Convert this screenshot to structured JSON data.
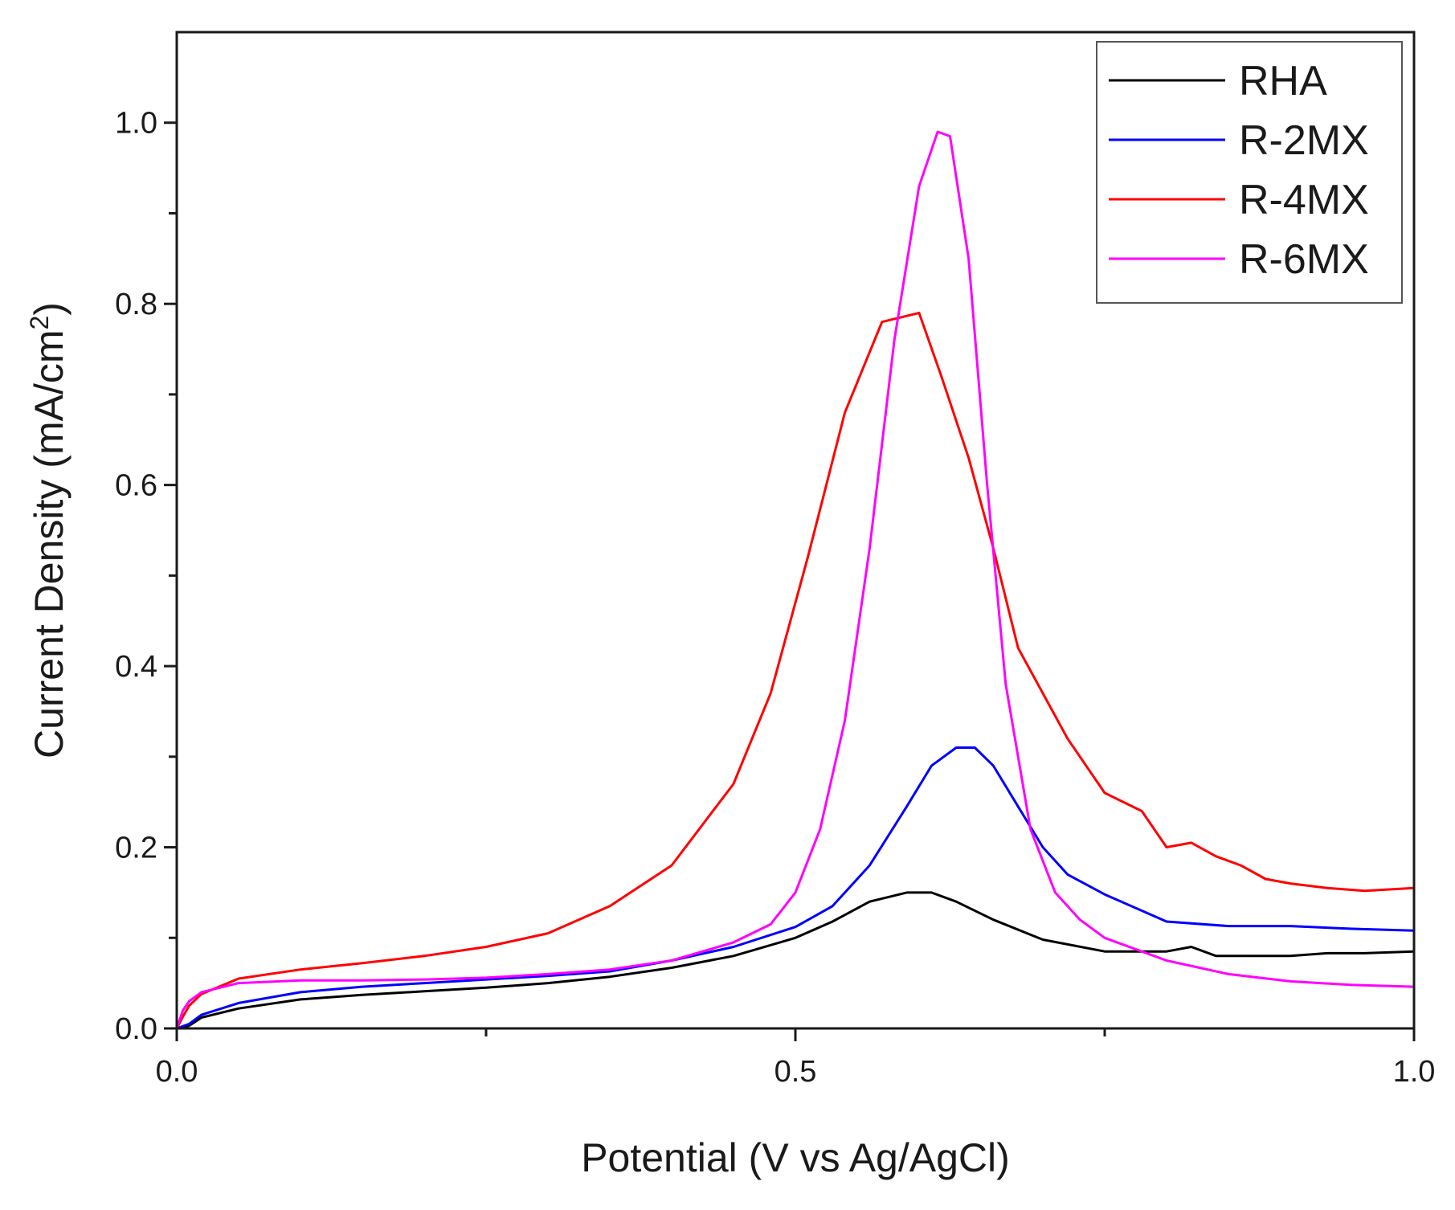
{
  "chart_data": {
    "type": "line",
    "title": "",
    "xlabel": "Potential (V vs Ag/AgCl)",
    "ylabel": "Current Density (mA/cm",
    "ylabel_sup": "2",
    "ylabel_end": ")",
    "xlim": [
      0.0,
      1.0
    ],
    "ylim": [
      0.0,
      1.1
    ],
    "x_ticks": [
      0.0,
      0.25,
      0.5,
      0.75,
      1.0
    ],
    "x_tick_labels": [
      "0.0",
      "",
      "0.5",
      "",
      "1.0"
    ],
    "y_ticks": [
      0.0,
      0.1,
      0.2,
      0.3,
      0.4,
      0.5,
      0.6,
      0.7,
      0.8,
      0.9,
      1.0
    ],
    "y_tick_labels": [
      "0.0",
      "",
      "0.2",
      "",
      "0.4",
      "",
      "0.6",
      "",
      "0.8",
      "",
      "1.0"
    ],
    "grid": false,
    "legend_position": "top-right",
    "series": [
      {
        "name": "RHA",
        "color": "#000000",
        "x": [
          0.0,
          0.01,
          0.02,
          0.05,
          0.1,
          0.15,
          0.2,
          0.25,
          0.3,
          0.35,
          0.4,
          0.45,
          0.5,
          0.53,
          0.56,
          0.59,
          0.61,
          0.63,
          0.66,
          0.7,
          0.75,
          0.8,
          0.82,
          0.84,
          0.87,
          0.9,
          0.93,
          0.96,
          1.0
        ],
        "values": [
          0.0,
          0.003,
          0.012,
          0.022,
          0.032,
          0.037,
          0.041,
          0.045,
          0.05,
          0.057,
          0.067,
          0.08,
          0.1,
          0.118,
          0.14,
          0.15,
          0.15,
          0.14,
          0.12,
          0.098,
          0.085,
          0.085,
          0.09,
          0.08,
          0.08,
          0.08,
          0.083,
          0.083,
          0.085
        ]
      },
      {
        "name": "R-2MX",
        "color": "#0000ff",
        "x": [
          0.0,
          0.01,
          0.02,
          0.05,
          0.1,
          0.15,
          0.2,
          0.25,
          0.3,
          0.35,
          0.4,
          0.45,
          0.5,
          0.53,
          0.56,
          0.59,
          0.61,
          0.63,
          0.645,
          0.66,
          0.68,
          0.7,
          0.72,
          0.75,
          0.8,
          0.85,
          0.9,
          0.95,
          1.0
        ],
        "values": [
          0.0,
          0.005,
          0.015,
          0.028,
          0.04,
          0.046,
          0.05,
          0.054,
          0.058,
          0.063,
          0.075,
          0.09,
          0.112,
          0.135,
          0.18,
          0.245,
          0.29,
          0.31,
          0.31,
          0.29,
          0.245,
          0.2,
          0.17,
          0.148,
          0.118,
          0.113,
          0.113,
          0.11,
          0.108
        ]
      },
      {
        "name": "R-4MX",
        "color": "#ff0000",
        "x": [
          0.0,
          0.005,
          0.01,
          0.02,
          0.05,
          0.1,
          0.15,
          0.2,
          0.25,
          0.3,
          0.35,
          0.4,
          0.45,
          0.48,
          0.51,
          0.54,
          0.57,
          0.6,
          0.618,
          0.64,
          0.66,
          0.68,
          0.7,
          0.72,
          0.75,
          0.78,
          0.8,
          0.82,
          0.84,
          0.86,
          0.88,
          0.9,
          0.93,
          0.96,
          1.0
        ],
        "values": [
          0.0,
          0.013,
          0.025,
          0.038,
          0.055,
          0.065,
          0.072,
          0.08,
          0.09,
          0.105,
          0.135,
          0.18,
          0.27,
          0.37,
          0.52,
          0.68,
          0.78,
          0.79,
          0.72,
          0.63,
          0.53,
          0.42,
          0.37,
          0.32,
          0.26,
          0.24,
          0.2,
          0.205,
          0.19,
          0.18,
          0.165,
          0.16,
          0.155,
          0.152,
          0.155
        ]
      },
      {
        "name": "R-6MX",
        "color": "#ff00ff",
        "x": [
          0.0,
          0.005,
          0.01,
          0.02,
          0.05,
          0.1,
          0.15,
          0.2,
          0.25,
          0.3,
          0.35,
          0.4,
          0.45,
          0.48,
          0.5,
          0.52,
          0.54,
          0.56,
          0.58,
          0.6,
          0.615,
          0.625,
          0.64,
          0.655,
          0.67,
          0.69,
          0.71,
          0.73,
          0.75,
          0.8,
          0.85,
          0.9,
          0.95,
          1.0
        ],
        "values": [
          0.0,
          0.02,
          0.03,
          0.04,
          0.05,
          0.053,
          0.053,
          0.054,
          0.056,
          0.06,
          0.065,
          0.075,
          0.095,
          0.115,
          0.15,
          0.22,
          0.34,
          0.53,
          0.76,
          0.93,
          0.99,
          0.985,
          0.85,
          0.6,
          0.38,
          0.22,
          0.15,
          0.12,
          0.1,
          0.075,
          0.06,
          0.052,
          0.048,
          0.046
        ]
      }
    ]
  }
}
